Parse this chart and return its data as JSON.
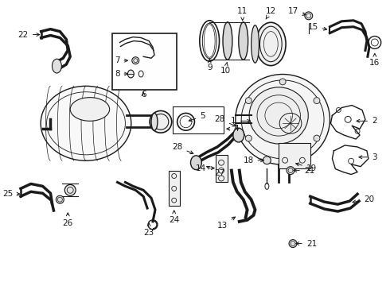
{
  "bg_color": "#ffffff",
  "lc": "#1a1a1a",
  "figsize": [
    4.9,
    3.6
  ],
  "dpi": 100,
  "font_size": 7.5,
  "label_font_size": 7.5
}
